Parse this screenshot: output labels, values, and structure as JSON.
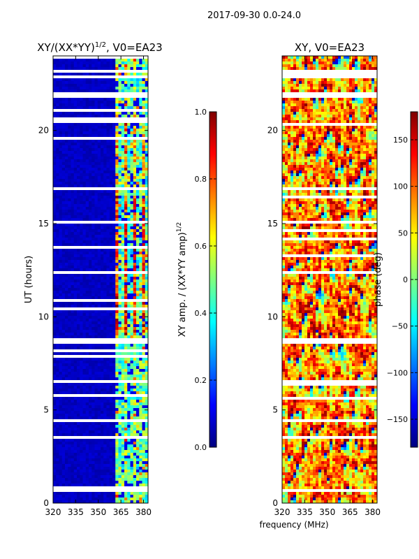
{
  "figure": {
    "suptitle": "2017-09-30 0.0-24.0",
    "xlabel_shared": "frequency (MHz)"
  },
  "colors": {
    "jet_stops": [
      "#00007f",
      "#0000ff",
      "#007fff",
      "#00ffff",
      "#7fff7f",
      "#ffff00",
      "#ff7f00",
      "#ff0000",
      "#7f0000"
    ],
    "gap": "#ffffff",
    "axis": "#000000"
  },
  "chart_data": [
    {
      "type": "heatmap",
      "name": "amplitude",
      "title": "XY/(XX*YY)^(1/2), V0=EA23",
      "title_main": "XY/(XX*YY)",
      "title_exp": "1/2",
      "title_tail": ", V0=EA23",
      "xlabel": "",
      "ylabel": "UT (hours)",
      "xlim": [
        320,
        383
      ],
      "ylim": [
        0,
        24
      ],
      "xticks": [
        320,
        335,
        350,
        365,
        380
      ],
      "yticks": [
        0,
        5,
        10,
        15,
        20
      ],
      "colorbar": {
        "label": "XY amp. / (XX*YY amp)^(1/2)",
        "label_main": "XY amp. / (XX*YY amp)",
        "label_exp": "1/2",
        "range": [
          0.0,
          1.0
        ],
        "ticks": [
          "0.0",
          "0.2",
          "0.4",
          "0.6",
          "0.8",
          "1.0"
        ],
        "tick_values": [
          0.0,
          0.2,
          0.4,
          0.6,
          0.8,
          1.0
        ]
      },
      "band_start_mhz": 361,
      "gap_hours": [
        21.8,
        21.9,
        22.0,
        8.8,
        8.6,
        16.95,
        23.1,
        22.8,
        15.1,
        6.6,
        3.6,
        4.45,
        0.75,
        0.7
      ]
    },
    {
      "type": "heatmap",
      "name": "phase",
      "title": "XY, V0=EA23",
      "xlabel": "",
      "ylabel": "",
      "xlim": [
        320,
        383
      ],
      "ylim": [
        0,
        24
      ],
      "xticks": [
        320,
        335,
        350,
        365,
        380
      ],
      "yticks": [
        0,
        5,
        10,
        15,
        20
      ],
      "colorbar": {
        "label": "phase (deg)",
        "range": [
          -180,
          180
        ],
        "ticks": [
          "−150",
          "−100",
          "−50",
          "0",
          "50",
          "100",
          "150"
        ],
        "tick_values": [
          -150,
          -100,
          -50,
          0,
          50,
          100,
          150
        ]
      },
      "gap_hours": [
        21.8,
        21.9,
        22.0,
        8.8,
        8.6,
        16.95,
        23.1,
        22.8,
        15.1,
        6.6,
        3.6,
        4.45,
        0.75,
        0.7
      ]
    }
  ]
}
